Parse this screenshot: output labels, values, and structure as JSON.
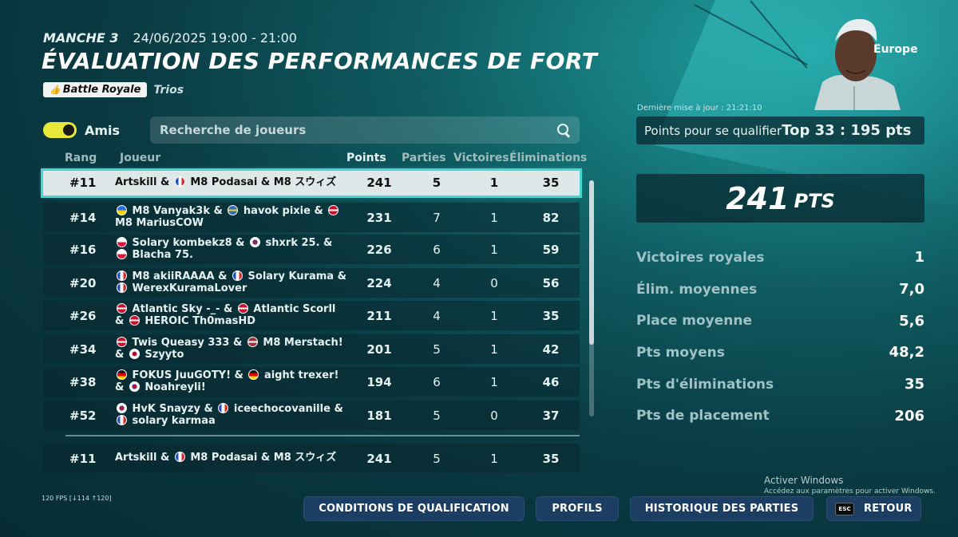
{
  "header": {
    "round": "MANCHE 3",
    "datetime": "24/06/2025 19:00 - 21:00",
    "title": "ÉVALUATION DES PERFORMANCES DE FORT",
    "mode_badge": "Battle Royale",
    "mode_sub": "Trios"
  },
  "filters": {
    "friends_label": "Amis",
    "friends_on": true,
    "search_placeholder": "Recherche de joueurs"
  },
  "table": {
    "headers": {
      "rank": "Rang",
      "player": "Joueur",
      "points": "Points",
      "games": "Parties",
      "wins": "Victoires",
      "elims": "Éliminations"
    },
    "rows": [
      {
        "rank": "#11",
        "players": "Artskill & 🇫🇷 M8 Podasai & M8 スウィズ",
        "points": "241",
        "games": "5",
        "wins": "1",
        "elims": "35",
        "selected": true
      },
      {
        "rank": "#14",
        "players": "🇺🇦 M8 Vanyak3k & 🇸🇪 havok pixie & 🇩🇰 M8 MariusCOW",
        "points": "231",
        "games": "7",
        "wins": "1",
        "elims": "82"
      },
      {
        "rank": "#16",
        "players": "🇵🇱 Solary kombekz8 & 🇰🇷 shxrk 25. & 🇵🇱 Blacha 75.",
        "points": "226",
        "games": "6",
        "wins": "1",
        "elims": "59"
      },
      {
        "rank": "#20",
        "players": "🇫🇷 M8 akiiRAAAA & 🇫🇷 Solary Kurama & 🇫🇷 WerexKuramaLover",
        "points": "224",
        "games": "4",
        "wins": "0",
        "elims": "56"
      },
      {
        "rank": "#26",
        "players": "🇩🇰 Atlantic Sky -_- & 🇩🇰 Atlantic Scorll & 🇩🇰 HEROIC Th0masHD",
        "points": "211",
        "games": "4",
        "wins": "1",
        "elims": "35"
      },
      {
        "rank": "#34",
        "players": "🇩🇰 Twis Queasy 333 & 🇱🇻 M8 Merstach! & 🇯🇵 Szyyto",
        "points": "201",
        "games": "5",
        "wins": "1",
        "elims": "42"
      },
      {
        "rank": "#38",
        "players": "🇩🇪 FOKUS JuuGOTY! & 🇩🇪 aight trexer! & 🇰🇷 Noahreyli!",
        "points": "194",
        "games": "6",
        "wins": "1",
        "elims": "46"
      },
      {
        "rank": "#52",
        "players": "🇰🇷 HvK Snayzy & 🇫🇷 iceechocovanille & 🇫🇷 solary karmaa",
        "points": "181",
        "games": "5",
        "wins": "0",
        "elims": "37"
      }
    ],
    "own_row": {
      "rank": "#11",
      "players": "Artskill & 🇫🇷 M8 Podasai & M8 スウィズ",
      "points": "241",
      "games": "5",
      "wins": "1",
      "elims": "35"
    }
  },
  "panel": {
    "region": "Europe",
    "last_update": "Dernière mise à jour : 21:21:10",
    "qualify_label": "Points pour se qualifier",
    "qualify_value": "Top 33 : 195 pts",
    "score_value": "241",
    "score_unit": "PTS",
    "stats": [
      {
        "label": "Victoires royales",
        "value": "1"
      },
      {
        "label": "Élim. moyennes",
        "value": "7,0"
      },
      {
        "label": "Place moyenne",
        "value": "5,6"
      },
      {
        "label": "Pts moyens",
        "value": "48,2"
      },
      {
        "label": "Pts d'éliminations",
        "value": "35"
      },
      {
        "label": "Pts de placement",
        "value": "206"
      }
    ]
  },
  "footer": {
    "fps": "120 FPS [↓114 ↑120]",
    "activate_title": "Activer Windows",
    "activate_sub": "Accédez aux paramètres pour activer Windows.",
    "buttons": {
      "conditions": "CONDITIONS DE QUALIFICATION",
      "profiles": "PROFILS",
      "history": "HISTORIQUE DES PARTIES",
      "back_key": "ESC",
      "back": "RETOUR"
    }
  },
  "colors": {
    "accent": "#48d5d0",
    "toggle": "#e8e83a",
    "button": "#1c3e63"
  }
}
